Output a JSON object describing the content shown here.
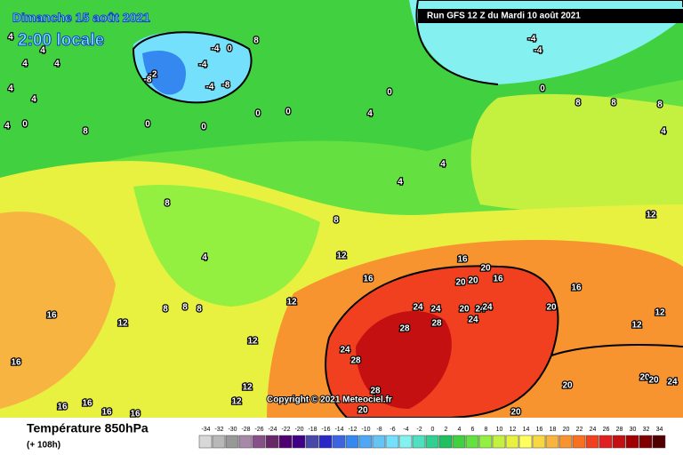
{
  "header": {
    "date": "Dimanche 15 août 2021",
    "time": "2:00 locale",
    "run": "Run GFS 12 Z du Mardi 10 août 2021",
    "copyright": "Copyright © 2021 Meteociel.fr"
  },
  "footer": {
    "title": "Température 850hPa",
    "lead": "(+ 108h)"
  },
  "legend": {
    "ticks": [
      -34,
      -32,
      -30,
      -28,
      -26,
      -24,
      -22,
      -20,
      -18,
      -16,
      -14,
      -12,
      -10,
      -8,
      -6,
      -4,
      -2,
      0,
      2,
      4,
      6,
      8,
      10,
      12,
      14,
      16,
      18,
      20,
      22,
      24,
      26,
      28,
      30,
      32,
      34
    ],
    "colors": [
      "#d8d8d8",
      "#b8b8b8",
      "#989898",
      "#a888a8",
      "#885088",
      "#682868",
      "#500070",
      "#400088",
      "#4848a8",
      "#2828c8",
      "#3c64e0",
      "#3488f0",
      "#50a8f4",
      "#64c4f4",
      "#74e0fc",
      "#84f0f0",
      "#50e0c0",
      "#30d090",
      "#20c060",
      "#40d040",
      "#64e040",
      "#94f040",
      "#c4f040",
      "#e8f040",
      "#ffff60",
      "#f8d840",
      "#f8b440",
      "#f89430",
      "#f87020",
      "#f04020",
      "#e02020",
      "#c41010",
      "#a00000",
      "#800000",
      "#500000"
    ]
  },
  "map_labels": [
    4,
    4,
    4,
    4,
    4,
    4,
    4,
    0,
    8,
    0,
    0,
    0,
    0,
    -4,
    0,
    -4,
    -2,
    -8,
    -4,
    -8,
    8,
    0,
    4,
    -4,
    -4,
    0,
    8,
    8,
    8,
    4,
    4,
    4,
    8,
    8,
    4,
    12,
    16,
    12,
    12,
    8,
    8,
    8,
    16,
    16,
    12,
    12,
    12,
    16,
    20,
    20,
    20,
    16,
    16,
    20,
    24,
    24,
    20,
    24,
    24,
    24,
    28,
    28,
    24,
    28,
    28,
    12,
    12,
    12,
    20,
    20,
    20,
    24,
    20,
    20,
    16,
    16,
    16,
    16
  ]
}
